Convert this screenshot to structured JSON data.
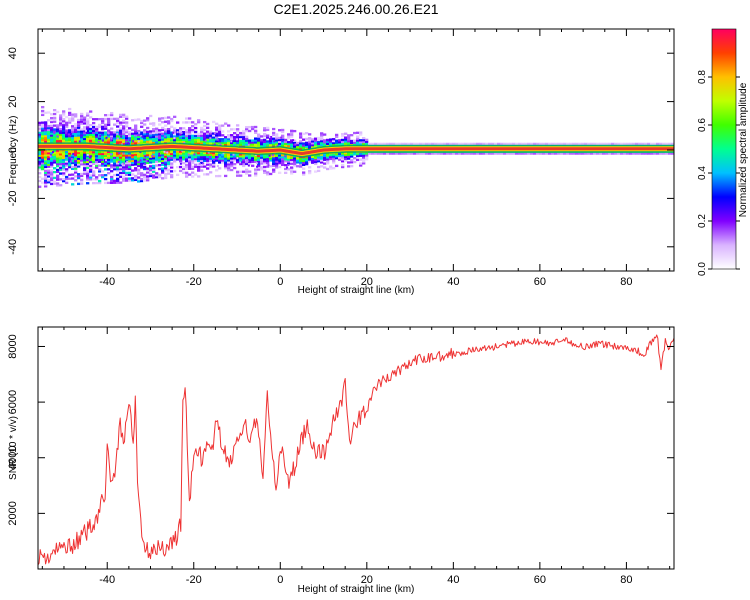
{
  "figure_title": "C2E1.2025.246.00.26.E21",
  "colors": {
    "snr_line": "#ee3333",
    "band_ridge": "#e63a2a",
    "band_outline": "#00aa66",
    "axis": "#000000"
  },
  "chart_data": [
    {
      "type": "heatmap",
      "title": "C2E1.2025.246.00.26.E21",
      "xlabel": "Height of straight line (km)",
      "ylabel": "Frequency (Hz)",
      "xlim": [
        -56,
        91
      ],
      "ylim": [
        -50,
        50
      ],
      "xticks": [
        -40,
        -20,
        0,
        20,
        40,
        60,
        80
      ],
      "yticks": [
        -40,
        -20,
        0,
        20,
        40
      ],
      "xtick_labels": [
        "-40",
        "-20",
        "0",
        "20",
        "40",
        "60",
        "80"
      ],
      "ytick_labels": [
        "-40",
        "-20",
        "0",
        "20",
        "40"
      ],
      "ridge": {
        "description": "main spectral ridge frequency (Hz) vs height (km)",
        "x": [
          -56,
          -50,
          -45,
          -40,
          -35,
          -30,
          -25,
          -20,
          -15,
          -10,
          -5,
          0,
          5,
          10,
          15,
          20,
          30,
          40,
          60,
          91
        ],
        "y": [
          1.5,
          1.5,
          1.5,
          1.0,
          0.5,
          1.0,
          1.5,
          1.0,
          0.5,
          0.0,
          -0.5,
          0.0,
          -1.5,
          0.0,
          0.5,
          0.5,
          0.5,
          0.5,
          0.5,
          0.5
        ]
      },
      "colorbar": {
        "label": "Normalized spectral amplitude",
        "range": [
          0,
          1
        ],
        "ticks": [
          0.0,
          0.2,
          0.4,
          0.6,
          0.8
        ],
        "tick_labels": [
          "0.0",
          "0.2",
          "0.4",
          "0.6",
          "0.8"
        ],
        "colors": [
          "#ffffff",
          "#d9b3ff",
          "#8000ff",
          "#0000ff",
          "#00c0ff",
          "#00ff90",
          "#40ff00",
          "#c0ff00",
          "#ffc000",
          "#ff4000",
          "#ff0060"
        ]
      }
    },
    {
      "type": "line",
      "xlabel": "Height of straight line (km)",
      "ylabel": "SNR (10 * v/v)",
      "xlim": [
        -56,
        91
      ],
      "ylim": [
        0,
        8700
      ],
      "xticks": [
        -40,
        -20,
        0,
        20,
        40,
        60,
        80
      ],
      "yticks": [
        2000,
        4000,
        6000,
        8000
      ],
      "xtick_labels": [
        "-40",
        "-20",
        "0",
        "20",
        "40",
        "60",
        "80"
      ],
      "ytick_labels": [
        "2000",
        "4000",
        "6000",
        "8000"
      ],
      "series": [
        {
          "name": "SNR",
          "x": [
            -56,
            -54,
            -52,
            -50,
            -48,
            -46,
            -44,
            -42,
            -40.5,
            -40,
            -39,
            -38,
            -37,
            -36,
            -35,
            -34,
            -33.5,
            -33,
            -32,
            -31,
            -30,
            -29,
            -28,
            -26,
            -24,
            -23,
            -22.5,
            -22,
            -21,
            -20,
            -19,
            -18,
            -17,
            -16,
            -15,
            -14,
            -12,
            -10,
            -8,
            -7,
            -6,
            -5,
            -4,
            -3,
            -2,
            -1,
            0,
            1,
            2,
            4,
            6,
            8,
            10,
            12,
            14,
            15,
            16,
            18,
            20,
            22,
            24,
            26,
            28,
            30,
            34,
            38,
            42,
            46,
            50,
            54,
            58,
            62,
            66,
            70,
            74,
            78,
            82,
            84,
            86,
            87,
            88,
            89,
            90,
            91
          ],
          "y": [
            500,
            400,
            600,
            800,
            900,
            1100,
            1500,
            2000,
            2800,
            4200,
            3000,
            3800,
            5200,
            4600,
            6200,
            4200,
            6300,
            3000,
            1400,
            600,
            700,
            900,
            700,
            800,
            1200,
            1600,
            6000,
            6600,
            2500,
            3800,
            4400,
            3900,
            4300,
            4000,
            5200,
            4800,
            3700,
            4600,
            5100,
            4200,
            5600,
            4800,
            3100,
            6300,
            4500,
            3000,
            4500,
            3600,
            3000,
            4100,
            5200,
            4300,
            4100,
            5200,
            6000,
            6800,
            4600,
            5300,
            5800,
            6500,
            6800,
            7000,
            7200,
            7400,
            7600,
            7700,
            7800,
            7900,
            8000,
            8100,
            8200,
            8100,
            8200,
            8000,
            8100,
            8000,
            7900,
            7700,
            8200,
            8500,
            7200,
            8200,
            7900,
            8300
          ]
        }
      ]
    }
  ]
}
